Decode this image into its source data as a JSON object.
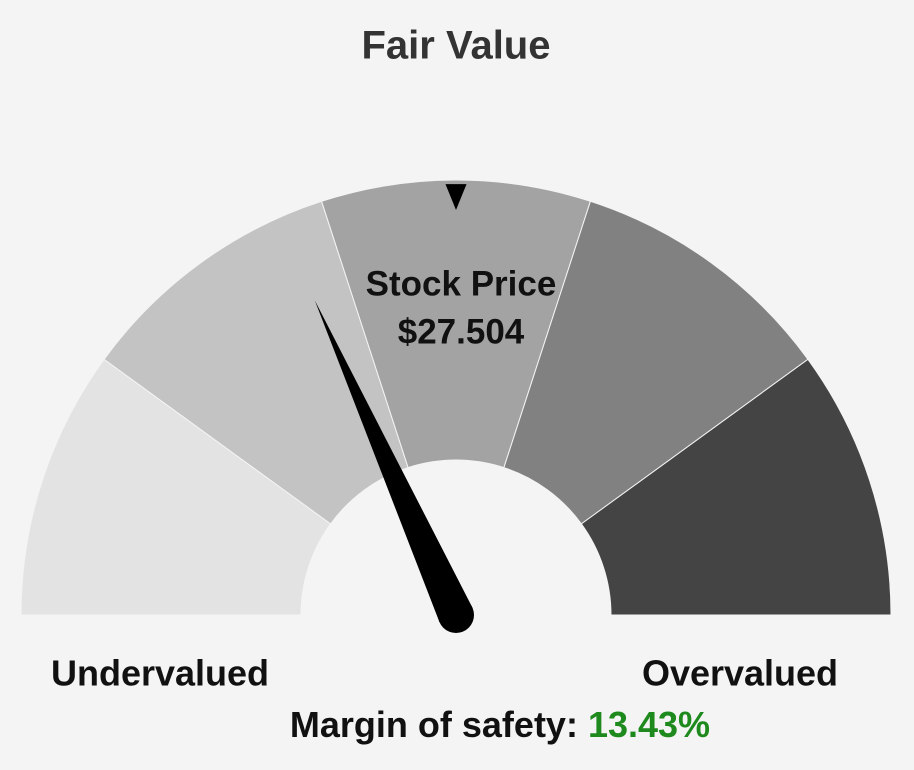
{
  "chart_data": {
    "type": "gauge",
    "title": "Fair Value",
    "center_label": "Stock Price",
    "center_value": "$27.504",
    "min_label": "Undervalued",
    "max_label": "Overvalued",
    "value_caption": "Margin of safety:",
    "values": [
      13.43
    ],
    "value_labels": [
      "13.43%"
    ],
    "value_color": "#1e8a1e",
    "lim": [
      50,
      -50
    ],
    "marker": 0,
    "band_colors": [
      "#e3e3e3",
      "#c3c3c3",
      "#a3a3a3",
      "#818181",
      "#444444"
    ]
  }
}
